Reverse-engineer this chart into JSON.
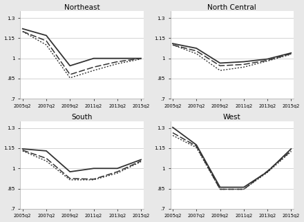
{
  "x_labels": [
    "2005q2",
    "2007q2",
    "2009q2",
    "2011q2",
    "2013q2",
    "2015q2"
  ],
  "x_values": [
    0,
    2,
    4,
    6,
    8,
    10
  ],
  "regions": [
    "Northeast",
    "North Central",
    "South",
    "West"
  ],
  "series": {
    "Northeast": {
      "psid": [
        1.22,
        1.17,
        0.945,
        1.0,
        1.0,
        1.0
      ],
      "fhfa": [
        1.2,
        1.13,
        0.88,
        0.935,
        0.975,
        1.0
      ],
      "zillow": [
        1.2,
        1.1,
        0.855,
        0.91,
        0.96,
        0.995
      ]
    },
    "North Central": {
      "psid": [
        1.11,
        1.075,
        0.965,
        0.975,
        0.995,
        1.04
      ],
      "fhfa": [
        1.1,
        1.055,
        0.945,
        0.955,
        0.985,
        1.035
      ],
      "zillow": [
        1.1,
        1.035,
        0.91,
        0.935,
        0.98,
        1.03
      ]
    },
    "South": {
      "psid": [
        1.145,
        1.13,
        0.975,
        1.0,
        1.0,
        1.065
      ],
      "fhfa": [
        1.135,
        1.075,
        0.925,
        0.92,
        0.975,
        1.055
      ],
      "zillow": [
        1.13,
        1.055,
        0.915,
        0.915,
        0.965,
        1.05
      ]
    },
    "West": {
      "psid": [
        1.305,
        1.175,
        0.86,
        0.86,
        0.975,
        1.145
      ],
      "fhfa": [
        1.265,
        1.165,
        0.845,
        0.845,
        0.98,
        1.13
      ],
      "zillow": [
        1.245,
        1.155,
        0.845,
        0.845,
        0.97,
        1.125
      ]
    }
  },
  "ylim": [
    0.7,
    1.35
  ],
  "yticks": [
    0.7,
    0.85,
    1.0,
    1.15,
    1.3
  ],
  "ytick_labels": [
    ".7",
    ".85",
    "1",
    "1.15",
    "1.3"
  ],
  "line_color": "#333333",
  "bg_color": "#ffffff",
  "fig_bg": "#e8e8e8",
  "grid_color": "#cccccc"
}
